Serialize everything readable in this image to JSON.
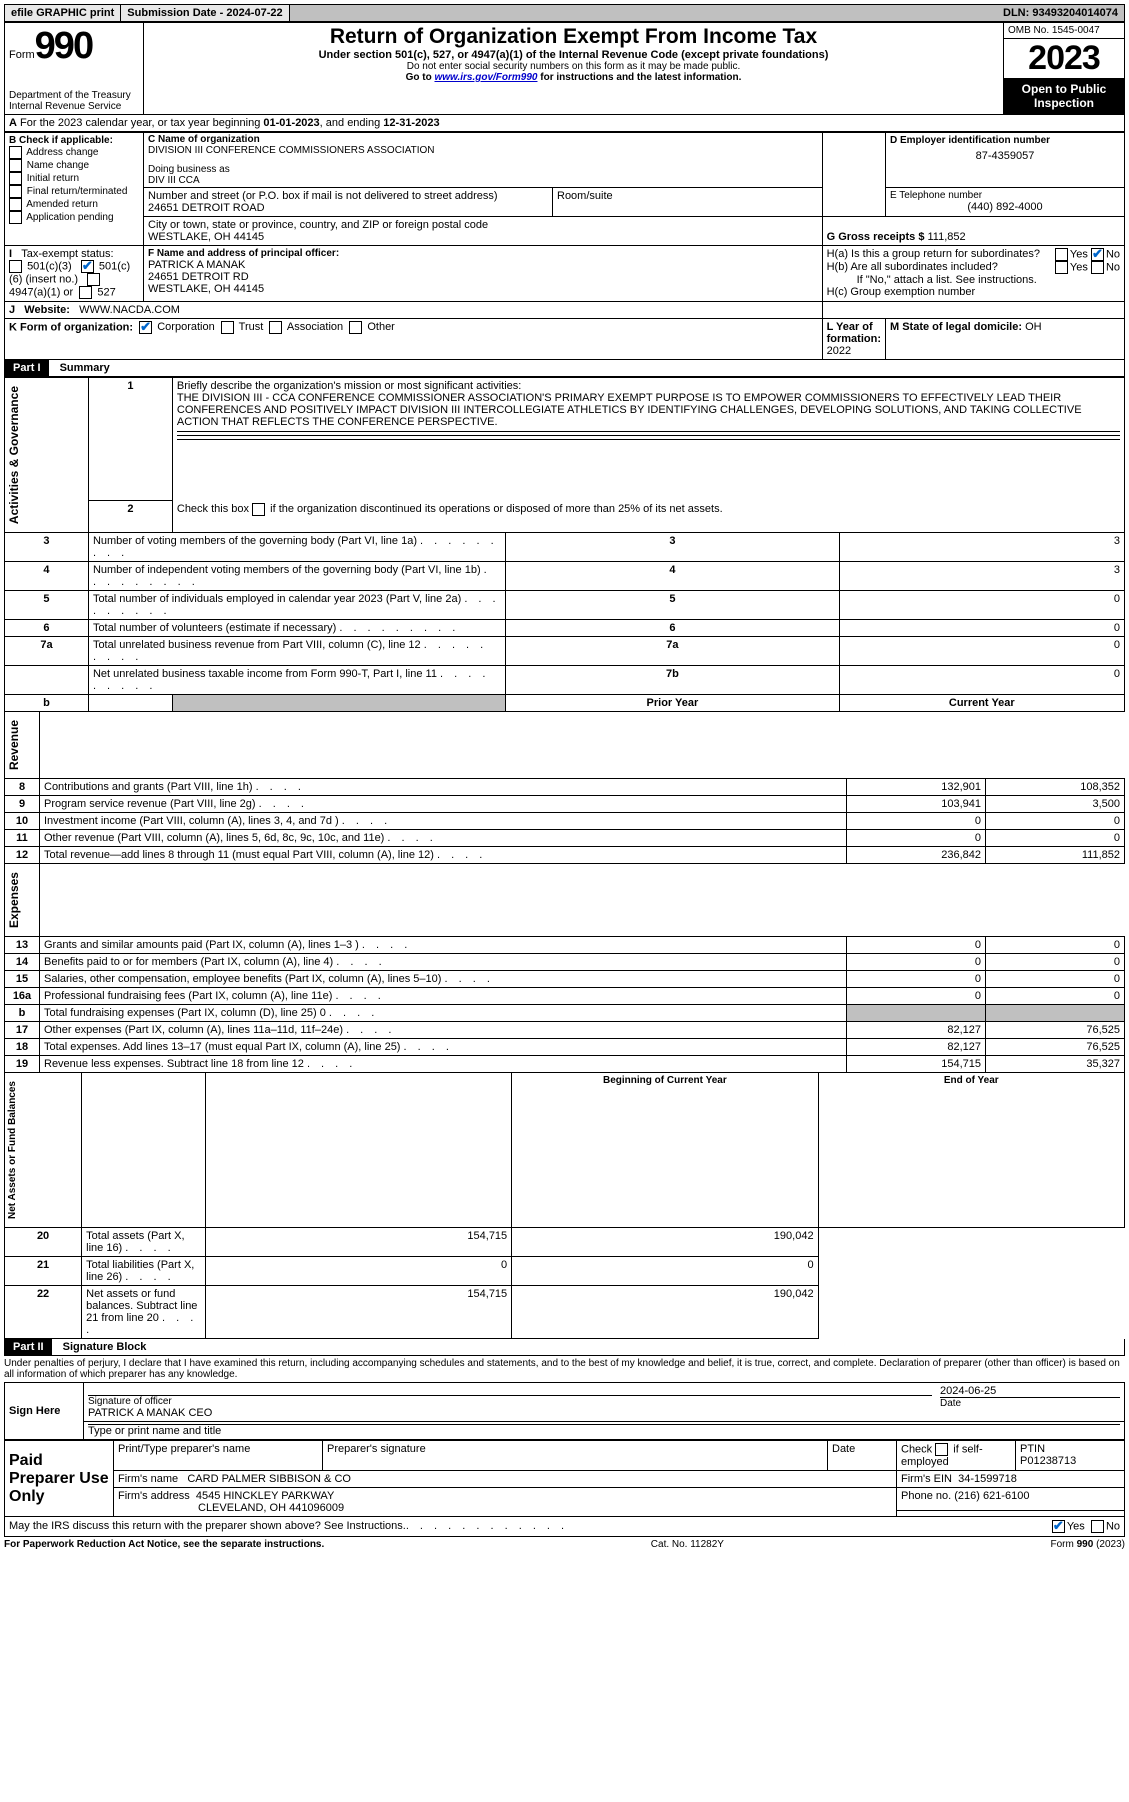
{
  "topbar": {
    "efile": "efile GRAPHIC print",
    "sublabel": "Submission Date",
    "subdate": "2024-07-22",
    "dln_label": "DLN:",
    "dln": "93493204014074"
  },
  "hdr": {
    "form_word": "Form",
    "form_num": "990",
    "title": "Return of Organization Exempt From Income Tax",
    "sub1": "Under section 501(c), 527, or 4947(a)(1) of the Internal Revenue Code (except private foundations)",
    "sub2": "Do not enter social security numbers on this form as it may be made public.",
    "sub3_a": "Go to ",
    "sub3_link": "www.irs.gov/Form990",
    "sub3_b": " for instructions and the latest information.",
    "dept": "Department of the Treasury",
    "irs": "Internal Revenue Service",
    "omb_label": "OMB No.",
    "omb": "1545-0047",
    "year": "2023",
    "open": "Open to Public Inspection"
  },
  "A": {
    "text_a": "For the 2023 calendar year, or tax year beginning ",
    "begin": "01-01-2023",
    "text_b": ", and ending ",
    "end": "12-31-2023"
  },
  "B": {
    "label": "B Check if applicable:",
    "opts": [
      "Address change",
      "Name change",
      "Initial return",
      "Final return/terminated",
      "Amended return",
      "Application pending"
    ]
  },
  "C": {
    "name_label": "C Name of organization",
    "name": "DIVISION III CONFERENCE COMMISSIONERS ASSOCIATION",
    "dba_label": "Doing business as",
    "dba": "DIV III CCA",
    "street_label": "Number and street (or P.O. box if mail is not delivered to street address)",
    "room_label": "Room/suite",
    "street": "24651 DETROIT ROAD",
    "city_label": "City or town, state or province, country, and ZIP or foreign postal code",
    "city": "WESTLAKE, OH  44145"
  },
  "D": {
    "label": "D Employer identification number",
    "val": "87-4359057"
  },
  "E": {
    "label": "E Telephone number",
    "val": "(440) 892-4000"
  },
  "G": {
    "label": "G Gross receipts $",
    "val": "111,852"
  },
  "F": {
    "label": "F Name and address of principal officer:",
    "name": "PATRICK A MANAK",
    "street": "24651 DETROIT RD",
    "city": "WESTLAKE, OH  44145"
  },
  "H": {
    "a": "H(a)  Is this a group return for subordinates?",
    "b": "H(b)  Are all subordinates included?",
    "b2": "If \"No,\" attach a list. See instructions.",
    "c": "H(c)  Group exemption number",
    "yes": "Yes",
    "no": "No"
  },
  "I": {
    "label": "Tax-exempt status:",
    "o1": "501(c)(3)",
    "o2a": "501(c) (",
    "o2b": "6",
    "o2c": ") (insert no.)",
    "o3": "4947(a)(1) or",
    "o4": "527"
  },
  "J": {
    "label": "Website:",
    "val": "WWW.NACDA.COM"
  },
  "K": {
    "label": "K Form of organization:",
    "opts": [
      "Corporation",
      "Trust",
      "Association",
      "Other"
    ]
  },
  "L": {
    "label": "L Year of formation:",
    "val": "2022"
  },
  "M": {
    "label": "M State of legal domicile:",
    "val": "OH"
  },
  "part1": {
    "tab": "Part I",
    "title": "Summary",
    "q1": "Briefly describe the organization's mission or most significant activities:",
    "mission": "THE DIVISION III - CCA CONFERENCE COMMISSIONER ASSOCIATION'S PRIMARY EXEMPT PURPOSE IS TO EMPOWER COMMISSIONERS TO EFFECTIVELY LEAD THEIR CONFERENCES AND POSITIVELY IMPACT DIVISION III INTERCOLLEGIATE ATHLETICS BY IDENTIFYING CHALLENGES, DEVELOPING SOLUTIONS, AND TAKING COLLECTIVE ACTION THAT REFLECTS THE CONFERENCE PERSPECTIVE.",
    "q2": "Check this box          if the organization discontinued its operations or disposed of more than 25% of its net assets.",
    "rows_single": [
      {
        "n": "3",
        "t": "Number of voting members of the governing body (Part VI, line 1a)",
        "box": "3",
        "v": "3"
      },
      {
        "n": "4",
        "t": "Number of independent voting members of the governing body (Part VI, line 1b)",
        "box": "4",
        "v": "3"
      },
      {
        "n": "5",
        "t": "Total number of individuals employed in calendar year 2023 (Part V, line 2a)",
        "box": "5",
        "v": "0"
      },
      {
        "n": "6",
        "t": "Total number of volunteers (estimate if necessary)",
        "box": "6",
        "v": "0"
      },
      {
        "n": "7a",
        "t": "Total unrelated business revenue from Part VIII, column (C), line 12",
        "box": "7a",
        "v": "0"
      },
      {
        "n": "",
        "t": "Net unrelated business taxable income from Form 990-T, Part I, line 11",
        "box": "7b",
        "v": "0"
      }
    ],
    "hdr_b": "b",
    "hdr_prior": "Prior Year",
    "hdr_curr": "Current Year",
    "rev": [
      {
        "n": "8",
        "t": "Contributions and grants (Part VIII, line 1h)",
        "p": "132,901",
        "c": "108,352"
      },
      {
        "n": "9",
        "t": "Program service revenue (Part VIII, line 2g)",
        "p": "103,941",
        "c": "3,500"
      },
      {
        "n": "10",
        "t": "Investment income (Part VIII, column (A), lines 3, 4, and 7d )",
        "p": "0",
        "c": "0"
      },
      {
        "n": "11",
        "t": "Other revenue (Part VIII, column (A), lines 5, 6d, 8c, 9c, 10c, and 11e)",
        "p": "0",
        "c": "0"
      },
      {
        "n": "12",
        "t": "Total revenue—add lines 8 through 11 (must equal Part VIII, column (A), line 12)",
        "p": "236,842",
        "c": "111,852"
      }
    ],
    "exp": [
      {
        "n": "13",
        "t": "Grants and similar amounts paid (Part IX, column (A), lines 1–3 )",
        "p": "0",
        "c": "0"
      },
      {
        "n": "14",
        "t": "Benefits paid to or for members (Part IX, column (A), line 4)",
        "p": "0",
        "c": "0"
      },
      {
        "n": "15",
        "t": "Salaries, other compensation, employee benefits (Part IX, column (A), lines 5–10)",
        "p": "0",
        "c": "0"
      },
      {
        "n": "16a",
        "t": "Professional fundraising fees (Part IX, column (A), line 11e)",
        "p": "0",
        "c": "0"
      },
      {
        "n": "b",
        "t": "Total fundraising expenses (Part IX, column (D), line 25) 0",
        "p": "GREY",
        "c": "GREY"
      },
      {
        "n": "17",
        "t": "Other expenses (Part IX, column (A), lines 11a–11d, 11f–24e)",
        "p": "82,127",
        "c": "76,525"
      },
      {
        "n": "18",
        "t": "Total expenses. Add lines 13–17 (must equal Part IX, column (A), line 25)",
        "p": "82,127",
        "c": "76,525"
      },
      {
        "n": "19",
        "t": "Revenue less expenses. Subtract line 18 from line 12",
        "p": "154,715",
        "c": "35,327"
      }
    ],
    "hdr_beg": "Beginning of Current Year",
    "hdr_end": "End of Year",
    "net": [
      {
        "n": "20",
        "t": "Total assets (Part X, line 16)",
        "p": "154,715",
        "c": "190,042"
      },
      {
        "n": "21",
        "t": "Total liabilities (Part X, line 26)",
        "p": "0",
        "c": "0"
      },
      {
        "n": "22",
        "t": "Net assets or fund balances. Subtract line 21 from line 20",
        "p": "154,715",
        "c": "190,042"
      }
    ],
    "vlabels": {
      "gov": "Activities & Governance",
      "rev": "Revenue",
      "exp": "Expenses",
      "net": "Net Assets or Fund Balances"
    }
  },
  "part2": {
    "tab": "Part II",
    "title": "Signature Block",
    "decl": "Under penalties of perjury, I declare that I have examined this return, including accompanying schedules and statements, and to the best of my knowledge and belief, it is true, correct, and complete. Declaration of preparer (other than officer) is based on all information of which preparer has any knowledge.",
    "sign_here": "Sign Here",
    "sig_officer": "Signature of officer",
    "officer": "PATRICK A MANAK CEO",
    "typed": "Type or print name and title",
    "date_label": "Date",
    "date": "2024-06-25",
    "paid": "Paid Preparer Use Only",
    "pt_name_label": "Print/Type preparer's name",
    "pt_sig_label": "Preparer's signature",
    "pt_date_label": "Date",
    "pt_check": "Check          if self-employed",
    "ptin_label": "PTIN",
    "ptin": "P01238713",
    "firm_name_label": "Firm's name",
    "firm_name": "CARD PALMER SIBBISON & CO",
    "firm_ein_label": "Firm's EIN",
    "firm_ein": "34-1599718",
    "firm_addr_label": "Firm's address",
    "firm_addr1": "4545 HINCKLEY PARKWAY",
    "firm_addr2": "CLEVELAND, OH  441096009",
    "phone_label": "Phone no.",
    "phone": "(216) 621-6100",
    "discuss": "May the IRS discuss this return with the preparer shown above? See Instructions.",
    "yes": "Yes",
    "no": "No"
  },
  "footer": {
    "pra": "For Paperwork Reduction Act Notice, see the separate instructions.",
    "cat": "Cat. No. 11282Y",
    "form": "Form 990 (2023)"
  }
}
